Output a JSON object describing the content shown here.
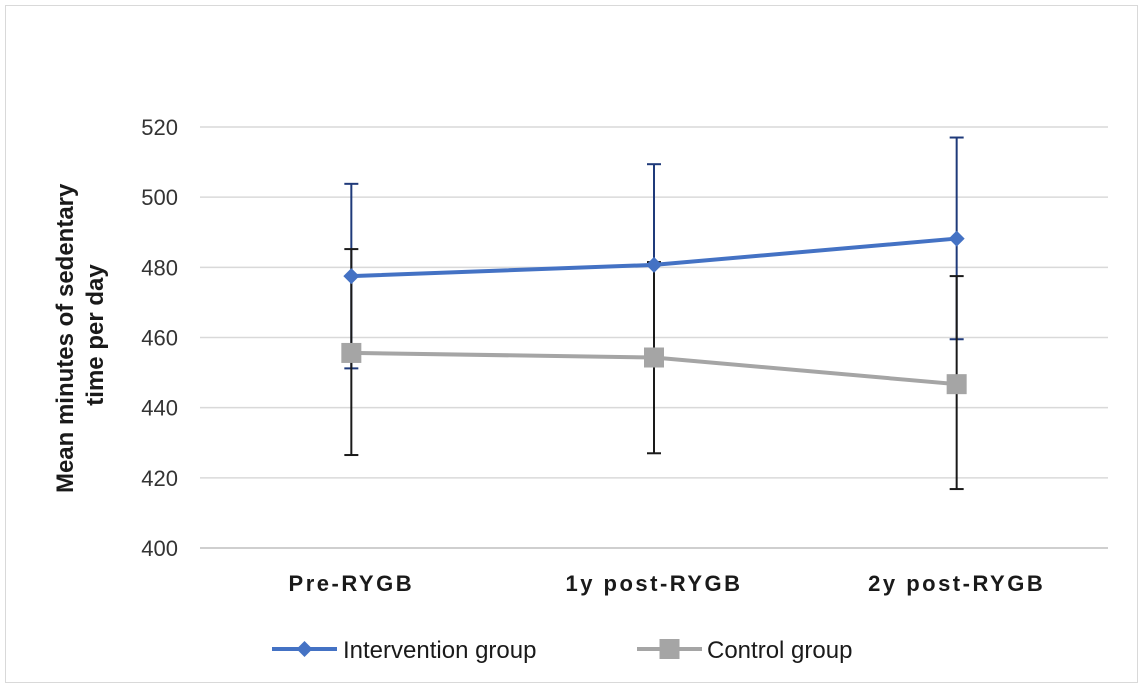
{
  "chart_data": {
    "type": "line",
    "title": "",
    "xlabel": "",
    "ylabel": "Mean minutes of sedentary time per day",
    "ylabel_lines": [
      "Mean minutes of sedentary",
      "time per day"
    ],
    "categories": [
      "Pre-RYGB",
      "1y post-RYGB",
      "2y post-RYGB"
    ],
    "ylim": [
      400,
      520
    ],
    "yticks": [
      400,
      420,
      440,
      460,
      480,
      500,
      520
    ],
    "grid": true,
    "legend_position": "bottom",
    "series": [
      {
        "name": "Intervention group",
        "values": [
          477.5,
          480.7,
          488.2
        ],
        "error_low": [
          451.2,
          452.0,
          459.5
        ],
        "error_high": [
          503.8,
          509.4,
          517.0
        ],
        "color": "#4472c4",
        "error_color": "#1f3a7a",
        "marker": "diamond"
      },
      {
        "name": "Control group",
        "values": [
          455.6,
          454.3,
          446.7
        ],
        "error_low": [
          426.5,
          427.0,
          416.8
        ],
        "error_high": [
          485.2,
          481.5,
          477.5
        ],
        "color": "#a5a5a5",
        "error_color": "#1a1a1a",
        "marker": "square"
      }
    ]
  }
}
